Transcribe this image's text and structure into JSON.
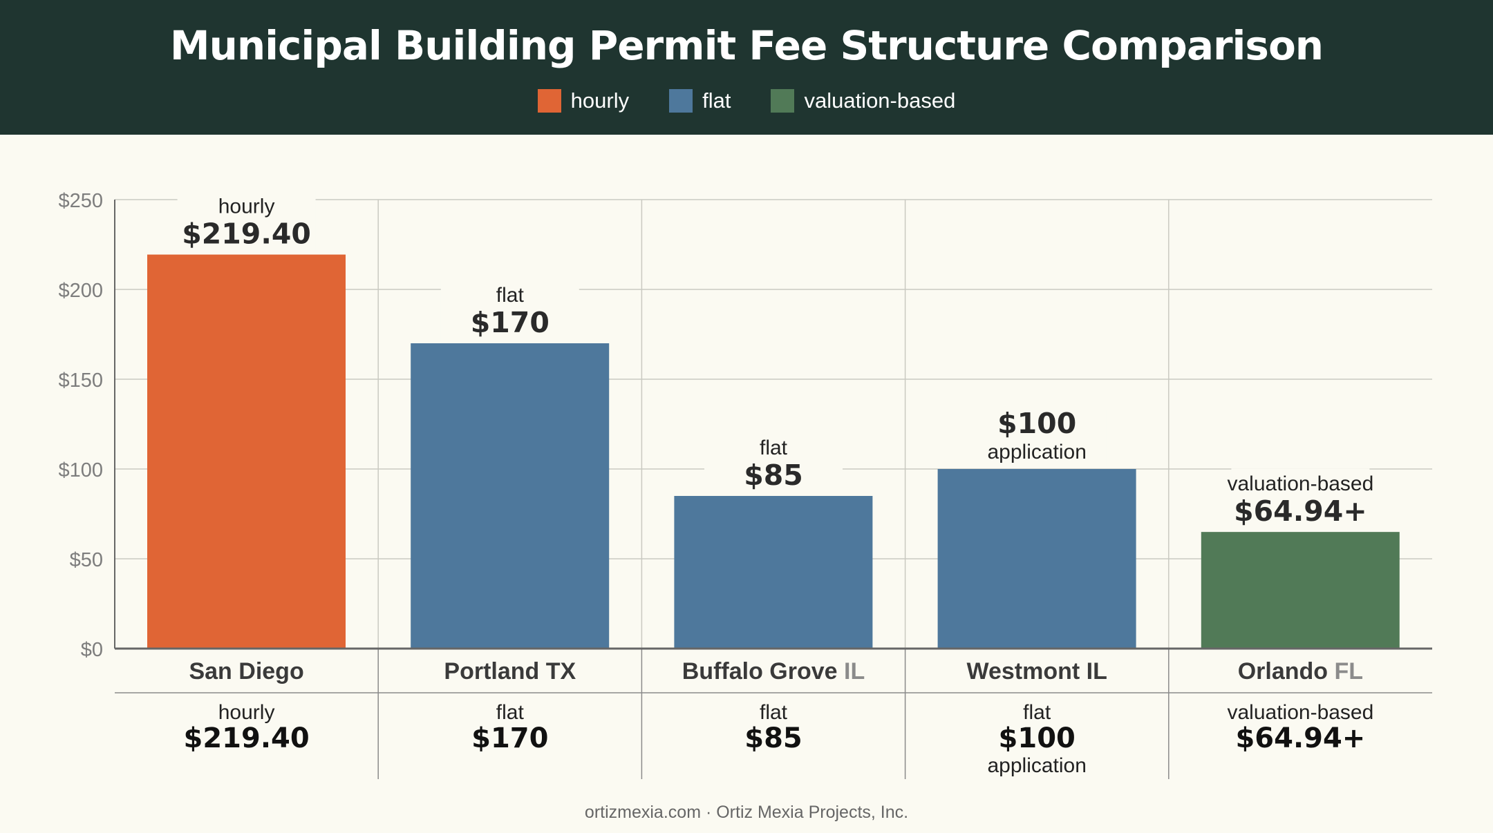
{
  "header": {
    "title": "Municipal Building Permit Fee Structure Comparison"
  },
  "legend": [
    {
      "label": "hourly",
      "color": "#e06535"
    },
    {
      "label": "flat",
      "color": "#4e789c"
    },
    {
      "label": "valuation-based",
      "color": "#517a57"
    }
  ],
  "chart_data": {
    "type": "bar",
    "title": "Municipal Building Permit Fee Structure Comparison",
    "xlabel": "",
    "ylabel": "",
    "ylim": [
      0,
      250
    ],
    "yticks": [
      "$0",
      "$50",
      "$100",
      "$150",
      "$200",
      "$250"
    ],
    "grid": true,
    "legend_position": "top-center",
    "categories": [
      {
        "main": "San Diego",
        "suffix": ""
      },
      {
        "main": "Portland TX",
        "suffix": ""
      },
      {
        "main": "Buffalo Grove",
        "suffix": "IL"
      },
      {
        "main": "Westmont IL",
        "suffix": ""
      },
      {
        "main": "Orlando",
        "suffix": "FL"
      }
    ],
    "values": [
      219.4,
      170,
      85,
      100,
      64.94
    ],
    "fee_types": [
      "hourly",
      "flat",
      "flat",
      "flat",
      "valuation-based"
    ],
    "bar_colors": [
      "#e06535",
      "#4e789c",
      "#4e789c",
      "#4e789c",
      "#517a57"
    ],
    "bar_labels": [
      {
        "top": "hourly",
        "value": "$219.40",
        "bottom": ""
      },
      {
        "top": "flat",
        "value": "$170",
        "bottom": ""
      },
      {
        "top": "flat",
        "value": "$85",
        "bottom": ""
      },
      {
        "top": "",
        "value": "$100",
        "bottom": "application"
      },
      {
        "top": "valuation-based",
        "value": "$64.94+",
        "bottom": ""
      }
    ],
    "table_rows": [
      {
        "type": "hourly",
        "value": "$219.40",
        "note": ""
      },
      {
        "type": "flat",
        "value": "$170",
        "note": ""
      },
      {
        "type": "flat",
        "value": "$85",
        "note": ""
      },
      {
        "type": "flat",
        "value": "$100",
        "note": "application"
      },
      {
        "type": "valuation-based",
        "value": "$64.94+",
        "note": ""
      }
    ]
  },
  "footer": {
    "text": "ortizmexia.com · Ortiz Mexia Projects, Inc."
  }
}
